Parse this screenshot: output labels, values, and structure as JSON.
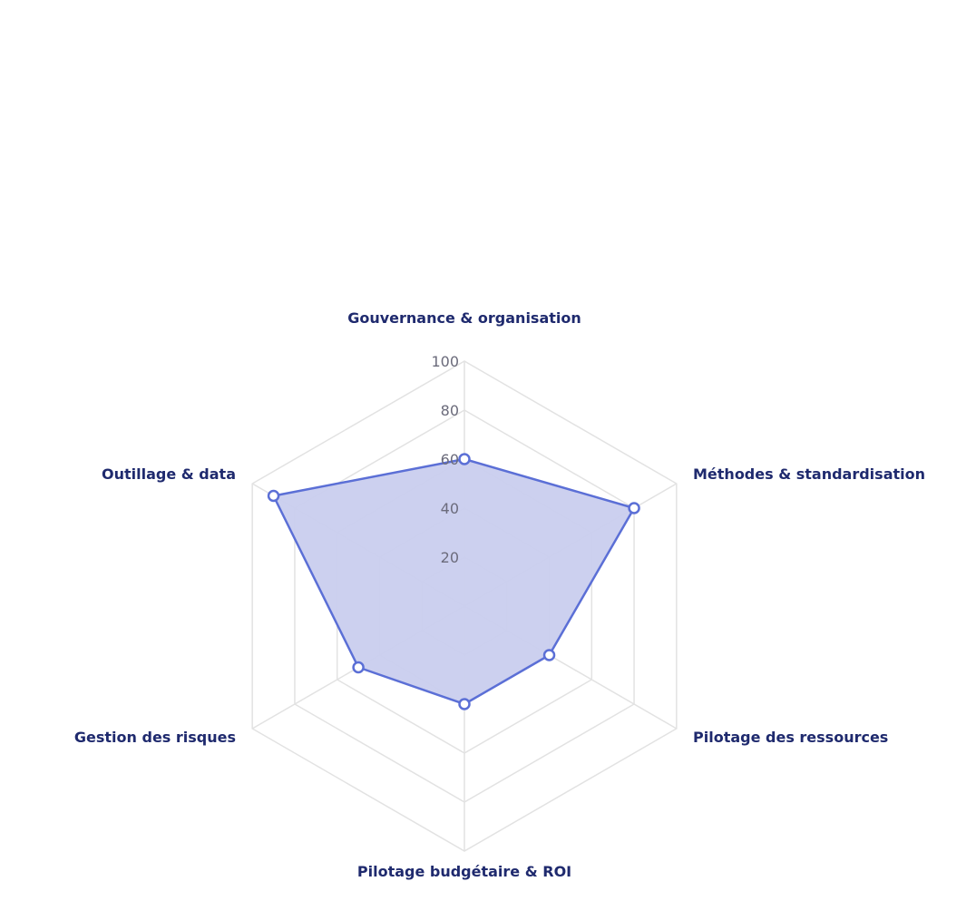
{
  "chart_data": {
    "type": "radar",
    "title": "",
    "axes": [
      "Gouvernance & organisation",
      "Méthodes & standardisation",
      "Pilotage des ressources",
      "Pilotage budgétaire & ROI",
      "Gestion des risques",
      "Outillage & data"
    ],
    "series": [
      {
        "values": [
          60,
          80,
          40,
          40,
          50,
          90
        ]
      }
    ],
    "r_range": [
      0,
      100
    ],
    "r_ticks": [
      20,
      40,
      60,
      80,
      100
    ],
    "grid": true,
    "colors": {
      "fill": "#c9cdee",
      "stroke": "#5b6fd6",
      "grid": "#e2e2e2",
      "axis_label": "#1f2a6e",
      "tick_label": "#6b6b7b"
    }
  }
}
